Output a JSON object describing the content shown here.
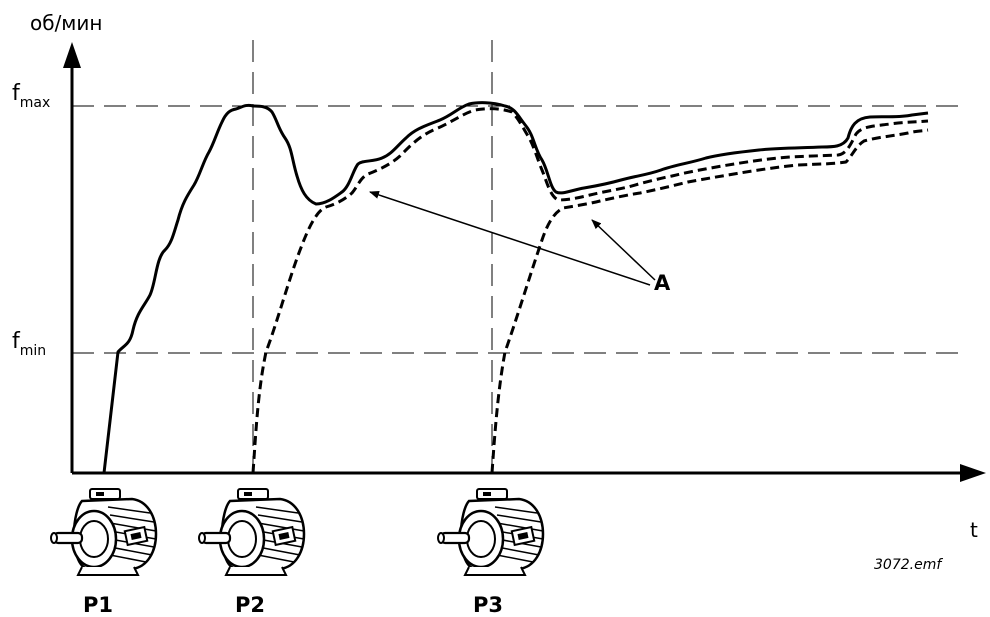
{
  "diagram": {
    "y_axis_label": "об/мин",
    "x_axis_label": "t",
    "f_max": {
      "base": "f",
      "sub": "max"
    },
    "f_min": {
      "base": "f",
      "sub": "min"
    },
    "pumps": [
      {
        "label": "P1"
      },
      {
        "label": "P2"
      },
      {
        "label": "P3"
      }
    ],
    "annotation": "A",
    "file_label": "3072.emf",
    "line_color": "#000000"
  }
}
